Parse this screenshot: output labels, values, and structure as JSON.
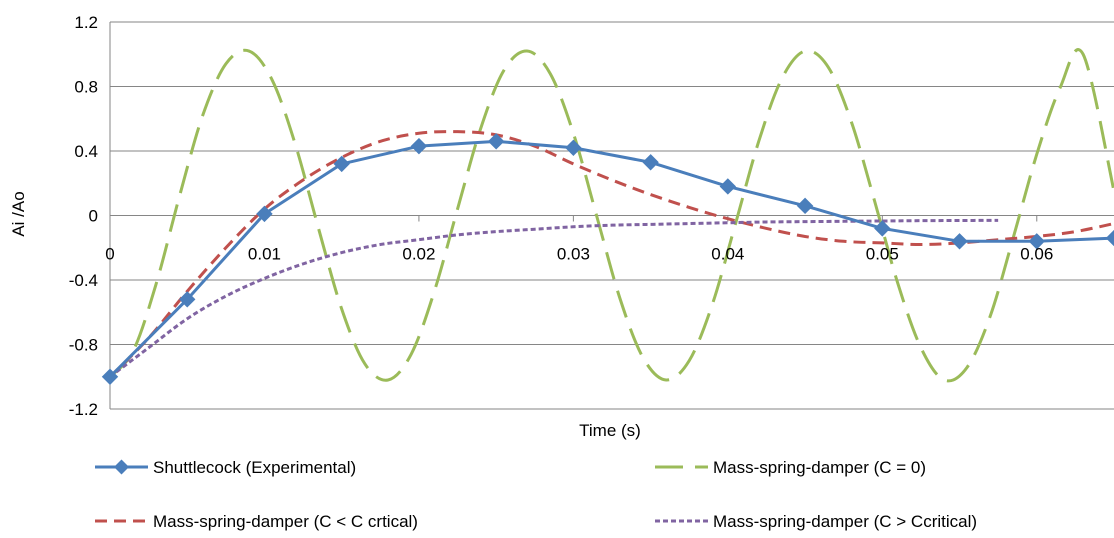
{
  "chart_data": {
    "type": "line",
    "title": "",
    "xlabel": "Time (s)",
    "ylabel": "Ai /Ao",
    "xlim": [
      0,
      0.065
    ],
    "ylim": [
      -1.2,
      1.2
    ],
    "x_ticks": [
      0,
      0.01,
      0.02,
      0.03,
      0.04,
      0.05,
      0.06
    ],
    "x_tick_labels": [
      "0",
      "0.01",
      "0.02",
      "0.03",
      "0.04",
      "0.05",
      "0.06"
    ],
    "y_ticks": [
      1.2,
      0.8,
      0.4,
      0,
      -0.4,
      -0.8,
      -1.2
    ],
    "y_tick_labels": [
      "1.2",
      "0.8",
      "0.4",
      "0",
      "-0.4",
      "-0.8",
      "-1.2"
    ],
    "grid": "horizontal",
    "legend_position": "bottom",
    "series": [
      {
        "name": "Shuttlecock (Experimental)",
        "color": "#4a7ebb",
        "style": "solid-diamond",
        "x": [
          0,
          0.005,
          0.01,
          0.015,
          0.02,
          0.025,
          0.03,
          0.035,
          0.04,
          0.045,
          0.05,
          0.055,
          0.06,
          0.065
        ],
        "y": [
          -1.0,
          -0.52,
          0.01,
          0.32,
          0.43,
          0.46,
          0.42,
          0.33,
          0.18,
          0.06,
          -0.08,
          -0.16,
          -0.16,
          -0.14
        ]
      },
      {
        "name": "Mass-spring-damper (C = 0)",
        "color": "#9bbb59",
        "style": "long-dash",
        "x": [
          0,
          0.0015,
          0.003,
          0.0045,
          0.006,
          0.0075,
          0.009,
          0.0105,
          0.012,
          0.0135,
          0.015,
          0.0165,
          0.018,
          0.0195,
          0.021,
          0.0225,
          0.024,
          0.0255,
          0.027,
          0.0285,
          0.03,
          0.0315,
          0.033,
          0.0345,
          0.036,
          0.0375,
          0.039,
          0.0405,
          0.042,
          0.0435,
          0.045,
          0.0465,
          0.048,
          0.0495,
          0.051,
          0.0525,
          0.054,
          0.0555,
          0.057,
          0.0585,
          0.06,
          0.0615,
          0.063,
          0.065
        ],
        "y": [
          -1.0,
          -0.84,
          -0.42,
          0.12,
          0.62,
          0.94,
          1.02,
          0.84,
          0.44,
          -0.08,
          -0.58,
          -0.92,
          -1.02,
          -0.86,
          -0.47,
          0.04,
          0.54,
          0.9,
          1.02,
          0.88,
          0.51,
          0.0,
          -0.51,
          -0.88,
          -1.02,
          -0.9,
          -0.55,
          -0.05,
          0.46,
          0.85,
          1.02,
          0.92,
          0.58,
          0.09,
          -0.42,
          -0.82,
          -1.02,
          -0.94,
          -0.62,
          -0.13,
          0.38,
          0.79,
          1.0,
          0.15
        ]
      },
      {
        "name": "Mass-spring-damper (C < C crtical)",
        "color": "#c0504d",
        "style": "dash",
        "x": [
          0,
          0.0025,
          0.005,
          0.0075,
          0.01,
          0.0125,
          0.015,
          0.0175,
          0.02,
          0.0225,
          0.025,
          0.0275,
          0.03,
          0.0325,
          0.035,
          0.0375,
          0.04,
          0.0425,
          0.045,
          0.0475,
          0.05,
          0.0525,
          0.055,
          0.0575,
          0.06,
          0.0625,
          0.065
        ],
        "y": [
          -1.0,
          -0.76,
          -0.47,
          -0.2,
          0.04,
          0.22,
          0.36,
          0.46,
          0.51,
          0.52,
          0.5,
          0.43,
          0.32,
          0.22,
          0.13,
          0.05,
          -0.02,
          -0.08,
          -0.13,
          -0.16,
          -0.17,
          -0.18,
          -0.17,
          -0.15,
          -0.13,
          -0.1,
          -0.05
        ]
      },
      {
        "name": "Mass-spring-damper (C > Ccritical)",
        "color": "#8064a2",
        "style": "short-dash",
        "x": [
          0,
          0.0025,
          0.005,
          0.0075,
          0.01,
          0.0125,
          0.015,
          0.0175,
          0.02,
          0.0225,
          0.025,
          0.0275,
          0.03,
          0.0325,
          0.035,
          0.0375,
          0.04,
          0.0425,
          0.045,
          0.0475,
          0.05,
          0.0525,
          0.055,
          0.0575
        ],
        "y": [
          -1.0,
          -0.82,
          -0.64,
          -0.5,
          -0.39,
          -0.3,
          -0.23,
          -0.18,
          -0.15,
          -0.12,
          -0.1,
          -0.085,
          -0.07,
          -0.06,
          -0.055,
          -0.05,
          -0.045,
          -0.04,
          -0.038,
          -0.036,
          -0.034,
          -0.032,
          -0.031,
          -0.03
        ]
      }
    ]
  }
}
